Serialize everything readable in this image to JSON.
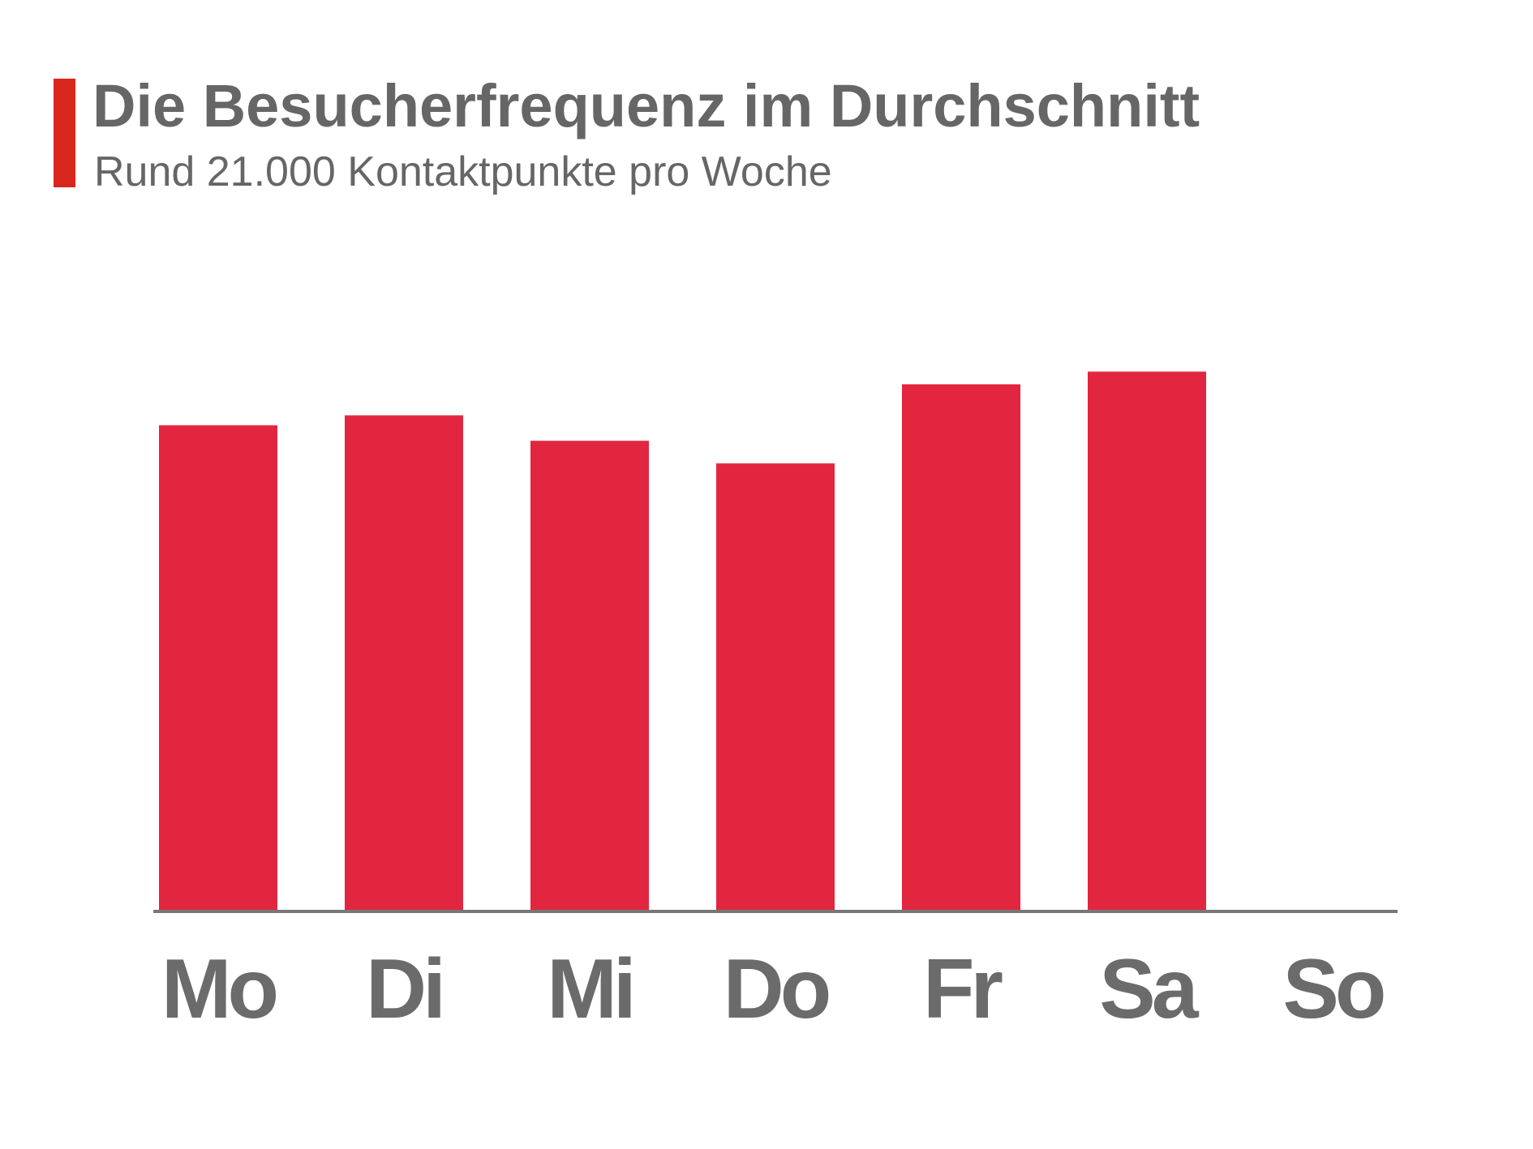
{
  "chart_data": {
    "type": "bar",
    "title": "Die Besucherfrequenz im Durchschnitt",
    "subtitle": "Rund 21.000 Kontaktpunkte pro Woche",
    "categories": [
      "Mo",
      "Di",
      "Mi",
      "Do",
      "Fr",
      "Sa",
      "So"
    ],
    "values": [
      3440,
      3510,
      3330,
      3170,
      3730,
      3820,
      0
    ],
    "color": "#e3263f",
    "ylim": [
      0,
      5000
    ]
  }
}
